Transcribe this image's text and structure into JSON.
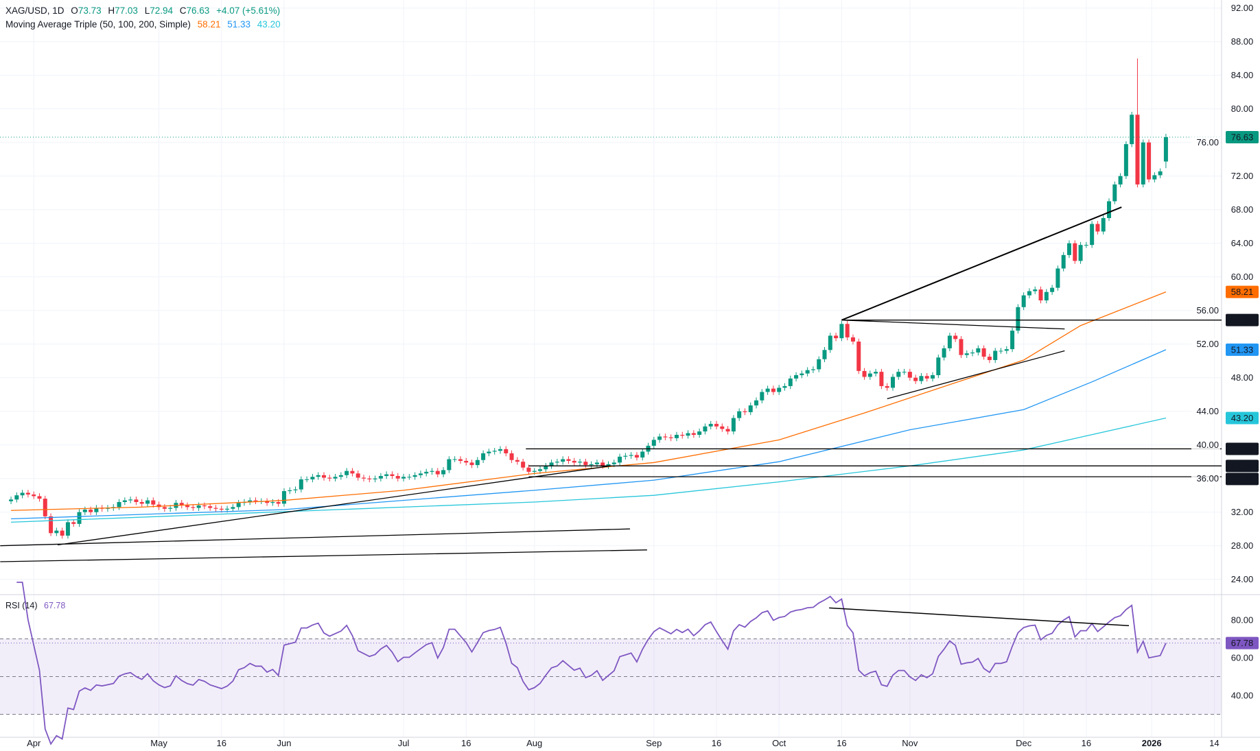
{
  "legend": {
    "symbol": "XAG/USD, 1D",
    "open_label": "O",
    "open": "73.73",
    "high_label": "H",
    "high": "77.03",
    "low_label": "L",
    "low": "72.94",
    "close_label": "C",
    "close": "76.63",
    "change": "+4.07 (+5.61%)",
    "ma_title": "Moving Average Triple (50, 100, 200, Simple)",
    "ma50": "58.21",
    "ma100": "51.33",
    "ma200": "43.20",
    "rsi_title": "RSI (14)",
    "rsi_value": "67.78"
  },
  "colors": {
    "up": "#089981",
    "down": "#f23645",
    "ma50": "#ff6d00",
    "ma100": "#2196f3",
    "ma200": "#26c6da",
    "rsi": "#7e57c2",
    "trend": "#000000"
  },
  "chart_data": [
    {
      "type": "candlestick",
      "title": "XAG/USD, 1D",
      "ylim": [
        22,
        94
      ],
      "y_ticks": [
        "92.00",
        "88.00",
        "84.00",
        "80.00",
        "76.00",
        "72.00",
        "68.00",
        "64.00",
        "60.00",
        "56.00",
        "52.00",
        "48.00",
        "44.00",
        "40.00",
        "36.00",
        "32.00",
        "28.00",
        "24.00"
      ],
      "x_ticks": [
        "Apr",
        "May",
        "16",
        "Jun",
        "Jul",
        "16",
        "Aug",
        "Sep",
        "16",
        "Oct",
        "16",
        "Nov",
        "Dec",
        "16",
        "2026",
        "14"
      ],
      "closes": [
        33.5,
        34.0,
        34.3,
        34.1,
        33.9,
        33.6,
        31.5,
        29.5,
        29.8,
        29.2,
        30.8,
        30.6,
        32.0,
        32.3,
        32.0,
        32.5,
        32.4,
        32.5,
        32.6,
        33.2,
        33.4,
        33.5,
        33.2,
        33.0,
        33.4,
        32.9,
        32.6,
        32.4,
        32.5,
        33.1,
        32.8,
        32.6,
        32.5,
        32.8,
        32.7,
        32.5,
        32.4,
        32.3,
        32.4,
        32.6,
        33.1,
        33.2,
        33.4,
        33.3,
        33.3,
        33.1,
        33.2,
        33.0,
        34.5,
        34.6,
        34.7,
        35.9,
        35.9,
        36.2,
        36.4,
        36.1,
        36.0,
        36.2,
        36.4,
        36.9,
        36.6,
        36.1,
        36.0,
        35.9,
        36.0,
        36.3,
        36.5,
        36.3,
        36.0,
        36.2,
        36.2,
        36.4,
        36.6,
        36.8,
        36.9,
        36.5,
        37.0,
        38.3,
        38.3,
        38.1,
        37.9,
        37.6,
        38.2,
        39.0,
        39.2,
        39.3,
        39.5,
        39.0,
        38.2,
        38.0,
        37.3,
        36.8,
        36.9,
        37.1,
        37.5,
        37.9,
        38.0,
        38.3,
        38.1,
        37.9,
        38.0,
        37.6,
        37.7,
        37.9,
        37.5,
        37.7,
        37.9,
        38.6,
        38.7,
        38.8,
        38.5,
        39.2,
        39.9,
        40.6,
        41.0,
        40.9,
        40.8,
        41.2,
        41.1,
        41.4,
        41.2,
        41.6,
        42.2,
        42.5,
        42.2,
        41.9,
        41.6,
        43.2,
        44.0,
        43.9,
        44.7,
        45.3,
        46.3,
        46.7,
        46.3,
        46.8,
        47.0,
        47.9,
        48.3,
        48.5,
        48.9,
        49.0,
        50.2,
        51.3,
        53.0,
        52.7,
        54.4,
        52.8,
        52.3,
        48.8,
        48.1,
        48.5,
        48.7,
        47.0,
        46.8,
        48.1,
        48.7,
        48.7,
        48.0,
        47.6,
        48.2,
        47.9,
        48.3,
        50.4,
        51.5,
        53.0,
        52.6,
        50.7,
        50.9,
        51.0,
        51.5,
        50.5,
        50.1,
        51.2,
        51.2,
        51.4,
        53.6,
        56.4,
        57.8,
        58.3,
        58.5,
        57.2,
        58.2,
        58.7,
        61.0,
        62.6,
        64.0,
        61.9,
        63.8,
        63.8,
        66.3,
        65.4,
        67.0,
        69.0,
        71.0,
        72.0,
        75.8,
        79.3,
        71.0,
        76.0,
        71.6,
        72.1,
        72.56,
        76.63
      ],
      "last_bar": {
        "open": 73.73,
        "high": 77.03,
        "low": 72.94,
        "close": 76.63
      },
      "max_high": {
        "index": 198,
        "value": 86.0
      },
      "moving_averages": [
        {
          "name": "50",
          "points": [
            [
              0,
              32.2
            ],
            [
              23,
              32.6
            ],
            [
              48,
              33.4
            ],
            [
              69,
              34.6
            ],
            [
              92,
              36.6
            ],
            [
              113,
              37.9
            ],
            [
              135,
              40.6
            ],
            [
              150,
              43.8
            ],
            [
              178,
              50.1
            ],
            [
              188,
              54.2
            ],
            [
              203,
              58.21
            ]
          ]
        },
        {
          "name": "100",
          "points": [
            [
              0,
              31.2
            ],
            [
              48,
              32.3
            ],
            [
              92,
              34.6
            ],
            [
              113,
              35.8
            ],
            [
              135,
              38.0
            ],
            [
              158,
              41.8
            ],
            [
              178,
              44.2
            ],
            [
              190,
              47.5
            ],
            [
              203,
              51.33
            ]
          ]
        },
        {
          "name": "200",
          "points": [
            [
              0,
              30.8
            ],
            [
              92,
              33.2
            ],
            [
              113,
              34.0
            ],
            [
              135,
              35.6
            ],
            [
              158,
              37.5
            ],
            [
              178,
              39.4
            ],
            [
              203,
              43.2
            ]
          ]
        }
      ],
      "horizontal_levels": [
        {
          "value": 54.86,
          "label": "54.86",
          "from": 146
        },
        {
          "value": 39.53,
          "label": "39.53",
          "from": 90.5
        },
        {
          "value": 37.5,
          "label": "37.50",
          "from": 91
        },
        {
          "value": 36.21,
          "label": "36.21",
          "from": 91
        }
      ],
      "trendlines": [
        [
          [
            146,
            54.86
          ],
          [
            195.2,
            68.3
          ]
        ],
        [
          [
            146,
            54.86
          ],
          [
            185.2,
            53.8
          ]
        ],
        [
          [
            154,
            45.5
          ],
          [
            185.2,
            51.2
          ]
        ],
        [
          [
            8.2,
            28.1
          ],
          [
            105.4,
            37.5
          ]
        ],
        [
          [
            -1.9,
            28.0
          ],
          [
            108.8,
            30.0
          ]
        ],
        [
          [
            -1.9,
            26.1
          ],
          [
            111.8,
            27.5
          ]
        ]
      ],
      "price_labels": [
        {
          "value": 76.63,
          "label": "76.63",
          "color": "#089981"
        },
        {
          "value": 58.21,
          "label": "58.21",
          "color": "#ff6d00"
        },
        {
          "value": 51.33,
          "label": "51.33",
          "color": "#2196f3"
        },
        {
          "value": 43.2,
          "label": "43.20",
          "color": "#26c6da"
        }
      ]
    },
    {
      "type": "line",
      "title": "RSI (14)",
      "ylim": [
        25,
        95
      ],
      "y_ticks": [
        "80.00",
        "60.00",
        "40.00"
      ],
      "bands": [
        70,
        50,
        30
      ],
      "last_value": 67.78,
      "trendline": [
        [
          143.8,
          86.4
        ],
        [
          196.5,
          77.0
        ]
      ]
    }
  ]
}
